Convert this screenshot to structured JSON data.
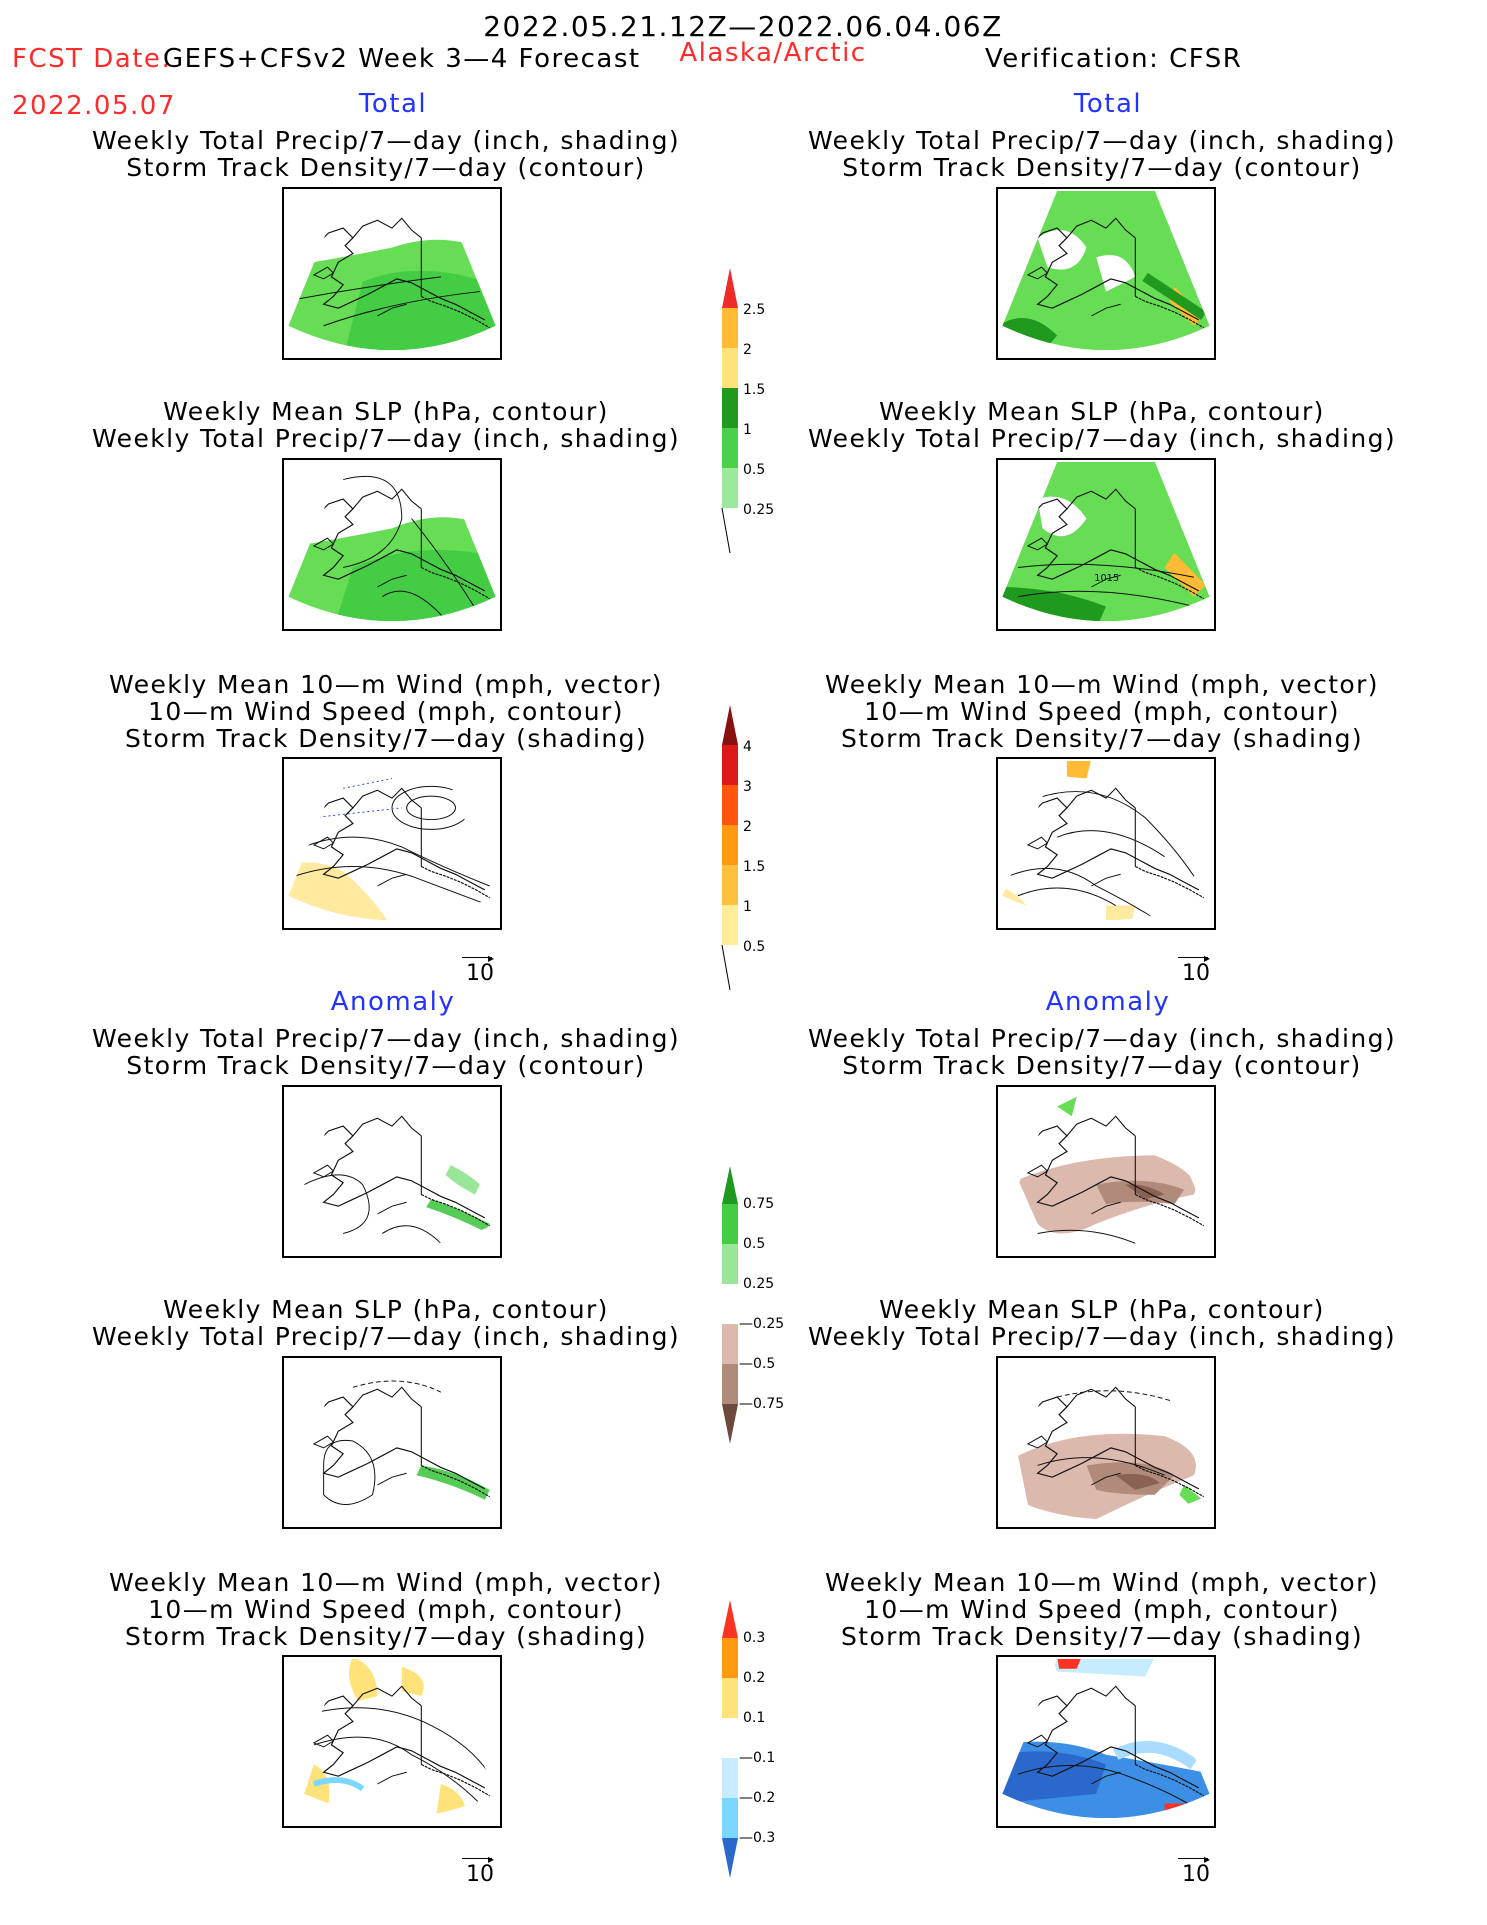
{
  "header": {
    "period": "2022.05.21.12Z—2022.06.04.06Z",
    "fcst_date_label": "FCST Date:",
    "product": "GEFS+CFSv2 Week 3—4 Forecast",
    "region": "Alaska/Arctic",
    "verification": "Verification: CFSR",
    "fcst_date": "2022.05.07"
  },
  "sections": {
    "total_left": "Total",
    "total_right": "Total",
    "anomaly_left": "Anomaly",
    "anomaly_right": "Anomaly"
  },
  "titles": {
    "precip_storm": [
      "Weekly Total Precip/7—day (inch, shading)",
      "Storm Track Density/7—day (contour)"
    ],
    "slp_precip": [
      "Weekly Mean SLP (hPa, contour)",
      "Weekly Total Precip/7—day (inch, shading)"
    ],
    "wind": [
      "Weekly Mean 10—m Wind (mph, vector)",
      "10—m Wind Speed (mph, contour)",
      "Storm Track Density/7—day (shading)"
    ]
  },
  "contour_label": "1015",
  "vector_ref_label": "10",
  "colorbars": {
    "precip_total": {
      "labels": [
        "2.5",
        "2",
        "1.5",
        "1",
        "0.5",
        "0.25"
      ],
      "colors": [
        "#f0e0a0",
        "#ffbb33",
        "#ffe27a",
        "#1f9a1f",
        "#4ad04a",
        "#9be99b"
      ]
    },
    "storm_total": {
      "labels": [
        "4",
        "3",
        "2",
        "1.5",
        "1",
        "0.5"
      ]
    },
    "precip_anom": {
      "labels": [
        "0.75",
        "0.5",
        "0.25",
        "—0.25",
        "—0.5",
        "—0.75"
      ]
    },
    "storm_anom": {
      "labels": [
        "0.3",
        "0.2",
        "0.1",
        "—0.1",
        "—0.2",
        "—0.3"
      ]
    }
  }
}
